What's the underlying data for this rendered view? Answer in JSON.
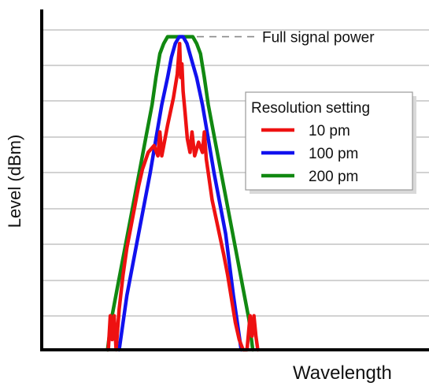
{
  "chart_data": {
    "type": "line",
    "title": "",
    "xlabel": "Wavelength",
    "ylabel": "Level (dBm)",
    "grid": true,
    "axis_ticks_shown": false,
    "xlim": [
      0,
      100
    ],
    "ylim": [
      0,
      100
    ],
    "legend": {
      "title": "Resolution setting",
      "placement": "center-right"
    },
    "annotation": {
      "text": "Full signal power",
      "y": 92
    },
    "colors": {
      "axis": "#000000",
      "grid": "#b8b8b8",
      "legend_border": "#999999",
      "legend_shadow": "#d9d9d9",
      "annotation_line": "#888888"
    },
    "series": [
      {
        "name": "10 pm",
        "color": "#ee1111",
        "x": [
          17.2,
          17.7,
          18.2,
          18.7,
          19.2,
          20.0,
          21.0,
          22.0,
          23.0,
          24.0,
          25.0,
          26.0,
          27.5,
          29.0,
          30.0,
          30.5,
          31.0,
          31.5,
          32.5,
          34.0,
          35.0,
          35.6,
          35.9,
          36.2,
          36.5,
          37.0,
          37.6,
          38.3,
          38.8,
          39.5,
          40.5,
          41.5,
          42.0,
          42.5,
          43.0,
          44.0,
          45.5,
          47.0,
          48.0,
          49.0,
          50.0,
          51.0,
          52.0,
          53.0,
          53.8,
          54.3,
          54.8,
          55.3,
          55.8
        ],
        "y": [
          0,
          10,
          3,
          10,
          0,
          12,
          22,
          30,
          36,
          42,
          48,
          53,
          58,
          60,
          57,
          64,
          57,
          60,
          66,
          74,
          81,
          90,
          80,
          84,
          76,
          70,
          62,
          58,
          64,
          57,
          61,
          58,
          64,
          56,
          52,
          44,
          36,
          28,
          22,
          15,
          8,
          3,
          0,
          0,
          10,
          4,
          10,
          4,
          0
        ]
      },
      {
        "name": "100 pm",
        "color": "#1111ee",
        "x": [
          20.0,
          21.0,
          22.0,
          23.5,
          25.0,
          26.5,
          28.0,
          29.5,
          31.0,
          32.5,
          33.5,
          34.5,
          35.5,
          36.5,
          37.5,
          38.5,
          40.0,
          41.5,
          43.0,
          44.5,
          46.0,
          47.5,
          48.5,
          49.5,
          50.5,
          51.5
        ],
        "y": [
          0,
          8,
          16,
          25,
          34,
          43,
          52,
          62,
          72,
          80,
          86,
          90,
          92,
          92,
          90,
          86,
          80,
          72,
          62,
          52,
          43,
          34,
          25,
          16,
          8,
          0
        ]
      },
      {
        "name": "200 pm",
        "color": "#118811",
        "x": [
          17.0,
          18.0,
          19.5,
          21.0,
          22.5,
          24.0,
          25.5,
          27.0,
          28.5,
          29.5,
          30.5,
          31.5,
          32.5,
          33.5,
          38.0,
          39.0,
          40.0,
          41.0,
          42.0,
          43.0,
          44.5,
          46.0,
          47.5,
          49.0,
          50.5,
          52.0,
          53.5,
          54.5
        ],
        "y": [
          0,
          9,
          18,
          27,
          36,
          45,
          54,
          63,
          72,
          80,
          87,
          90,
          92,
          92,
          92,
          92,
          90,
          87,
          80,
          72,
          63,
          54,
          45,
          36,
          27,
          18,
          9,
          0
        ]
      }
    ]
  }
}
